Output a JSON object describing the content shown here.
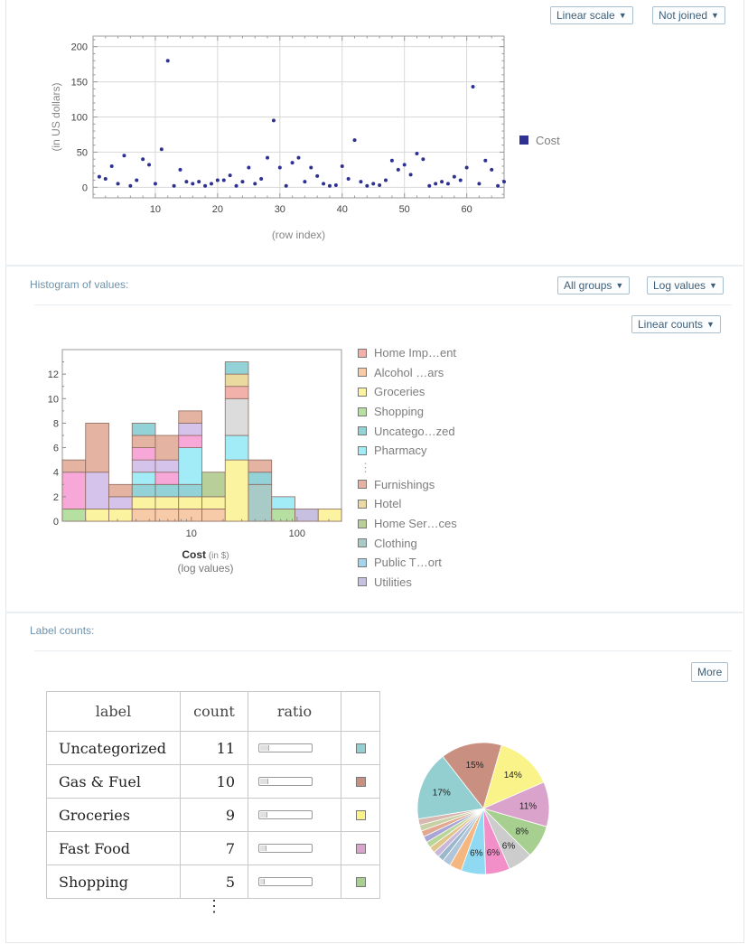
{
  "scatter": {
    "controls": {
      "scale": "Linear scale",
      "join": "Not joined"
    },
    "chart_data": {
      "type": "scatter",
      "title": "",
      "xlabel": "(row index)",
      "ylabel": "(in US dollars)",
      "xlim": [
        0,
        66
      ],
      "ylim": [
        -15,
        215
      ],
      "xticks": [
        10,
        20,
        30,
        40,
        50,
        60
      ],
      "yticks": [
        0,
        50,
        100,
        150,
        200
      ],
      "series": [
        {
          "name": "Cost",
          "color": "#2e3192",
          "x": [
            1,
            2,
            3,
            4,
            5,
            6,
            7,
            8,
            9,
            10,
            11,
            12,
            13,
            14,
            15,
            16,
            17,
            18,
            19,
            20,
            21,
            22,
            23,
            24,
            25,
            26,
            27,
            28,
            29,
            30,
            31,
            32,
            33,
            34,
            35,
            36,
            37,
            38,
            39,
            40,
            41,
            42,
            43,
            44,
            45,
            46,
            47,
            48,
            49,
            50,
            51,
            52,
            53,
            54,
            55,
            56,
            57,
            58,
            59,
            60,
            61,
            62,
            63,
            64,
            65,
            66
          ],
          "y": [
            15,
            12,
            30,
            5,
            45,
            2,
            10,
            40,
            32,
            5,
            54,
            180,
            2,
            25,
            8,
            5,
            8,
            2,
            5,
            10,
            10,
            17,
            2,
            8,
            28,
            5,
            12,
            42,
            95,
            28,
            2,
            35,
            42,
            8,
            28,
            16,
            5,
            2,
            3,
            30,
            12,
            67,
            8,
            2,
            5,
            3,
            10,
            38,
            25,
            32,
            18,
            48,
            40,
            2,
            5,
            8,
            5,
            15,
            10,
            28,
            143,
            5,
            38,
            25,
            2,
            8
          ]
        }
      ],
      "legend": "right"
    }
  },
  "histogram": {
    "title": "Histogram of values:",
    "controls": {
      "groups": "All groups",
      "values": "Log values",
      "counts": "Linear counts"
    },
    "chart_data": {
      "type": "bar",
      "stacked": true,
      "title": "",
      "xlabel": "Cost",
      "xlabel_unit": "(in $)",
      "xlabel_note": "(log values)",
      "log_x": true,
      "xticks": [
        10,
        100
      ],
      "yticks": [
        0,
        2,
        4,
        6,
        8,
        10,
        12
      ],
      "ylim": [
        0,
        14
      ],
      "bin_edges_log10": [
        -0.22,
        0.0,
        0.22,
        0.44,
        0.66,
        0.88,
        1.1,
        1.32,
        1.54,
        1.76,
        1.98,
        2.2,
        2.42
      ],
      "colors": {
        "Home Imp…ent": "#f2b2ab",
        "Alcohol …ars": "#f8cba8",
        "Groceries": "#fcf3a0",
        "Shopping": "#b6dfa2",
        "Uncatego…zed": "#93d2d6",
        "Pharmacy": "#a2ecf7",
        "Pink": "#f7a8d9",
        "Lavender": "#d5c3ec",
        "Furnishings": "#e5b3a1",
        "Hotel": "#eadaa0",
        "Home Ser…ces": "#b9cf9a",
        "Clothing": "#a9cbc8",
        "Public T…ort": "#a4d4ec",
        "Utilities": "#c7c0e0",
        "Gray": "#dcdcdc"
      },
      "bins": [
        [
          {
            "g": "Shopping",
            "v": 1
          },
          {
            "g": "Pink",
            "v": 3
          },
          {
            "g": "Furnishings",
            "v": 1
          }
        ],
        [
          {
            "g": "Groceries",
            "v": 1
          },
          {
            "g": "Lavender",
            "v": 3
          },
          {
            "g": "Furnishings",
            "v": 4
          }
        ],
        [
          {
            "g": "Groceries",
            "v": 1
          },
          {
            "g": "Lavender",
            "v": 1
          },
          {
            "g": "Furnishings",
            "v": 1
          }
        ],
        [
          {
            "g": "Alcohol …ars",
            "v": 1
          },
          {
            "g": "Groceries",
            "v": 1
          },
          {
            "g": "Uncatego…zed",
            "v": 1
          },
          {
            "g": "Pharmacy",
            "v": 1
          },
          {
            "g": "Lavender",
            "v": 1
          },
          {
            "g": "Pink",
            "v": 1
          },
          {
            "g": "Furnishings",
            "v": 1
          },
          {
            "g": "Uncatego…zed",
            "v": 1
          }
        ],
        [
          {
            "g": "Alcohol …ars",
            "v": 1
          },
          {
            "g": "Groceries",
            "v": 1
          },
          {
            "g": "Uncatego…zed",
            "v": 1
          },
          {
            "g": "Pink",
            "v": 1
          },
          {
            "g": "Lavender",
            "v": 1
          },
          {
            "g": "Furnishings",
            "v": 2
          }
        ],
        [
          {
            "g": "Alcohol …ars",
            "v": 1
          },
          {
            "g": "Groceries",
            "v": 1
          },
          {
            "g": "Uncatego…zed",
            "v": 1
          },
          {
            "g": "Pharmacy",
            "v": 3
          },
          {
            "g": "Pink",
            "v": 1
          },
          {
            "g": "Lavender",
            "v": 1
          },
          {
            "g": "Furnishings",
            "v": 1
          }
        ],
        [
          {
            "g": "Alcohol …ars",
            "v": 1
          },
          {
            "g": "Groceries",
            "v": 1
          },
          {
            "g": "Home Ser…ces",
            "v": 2
          }
        ],
        [
          {
            "g": "Groceries",
            "v": 5
          },
          {
            "g": "Pharmacy",
            "v": 2
          },
          {
            "g": "Gray",
            "v": 3
          },
          {
            "g": "Home Imp…ent",
            "v": 1
          },
          {
            "g": "Hotel",
            "v": 1
          },
          {
            "g": "Uncatego…zed",
            "v": 1
          }
        ],
        [
          {
            "g": "Clothing",
            "v": 3
          },
          {
            "g": "Uncatego…zed",
            "v": 1
          },
          {
            "g": "Furnishings",
            "v": 1
          }
        ],
        [
          {
            "g": "Shopping",
            "v": 1
          },
          {
            "g": "Pharmacy",
            "v": 1
          }
        ],
        [
          {
            "g": "Utilities",
            "v": 1
          }
        ],
        [
          {
            "g": "Groceries",
            "v": 1
          }
        ]
      ],
      "legend": "right"
    },
    "legend_items": [
      {
        "label": "Home Imp…ent",
        "color": "#f2b2ab"
      },
      {
        "label": "Alcohol …ars",
        "color": "#f8cba8"
      },
      {
        "label": "Groceries",
        "color": "#fcf3a0"
      },
      {
        "label": "Shopping",
        "color": "#b6dfa2"
      },
      {
        "label": "Uncatego…zed",
        "color": "#93d2d6"
      },
      {
        "label": "Pharmacy",
        "color": "#a2ecf7"
      }
    ],
    "legend_ellipsis": "⋮",
    "legend_items_2": [
      {
        "label": "Furnishings",
        "color": "#e5b3a1"
      },
      {
        "label": "Hotel",
        "color": "#eadaa0"
      },
      {
        "label": "Home Ser…ces",
        "color": "#b9cf9a"
      },
      {
        "label": "Clothing",
        "color": "#a9cbc8"
      },
      {
        "label": "Public T…ort",
        "color": "#a4d4ec"
      },
      {
        "label": "Utilities",
        "color": "#c7c0e0"
      }
    ]
  },
  "label_counts": {
    "title": "Label counts:",
    "more_button": "More",
    "headers": [
      "label",
      "count",
      "ratio",
      ""
    ],
    "rows": [
      {
        "label": "Uncategorized",
        "count": "11",
        "ratio": 0.15,
        "color": "#93cfd1"
      },
      {
        "label": "Gas & Fuel",
        "count": "10",
        "ratio": 0.14,
        "color": "#c99082"
      },
      {
        "label": "Groceries",
        "count": "9",
        "ratio": 0.12,
        "color": "#f9f38a"
      },
      {
        "label": "Fast Food",
        "count": "7",
        "ratio": 0.1,
        "color": "#d9a3cb"
      },
      {
        "label": "Shopping",
        "count": "5",
        "ratio": 0.07,
        "color": "#a6cf90"
      }
    ],
    "ellipsis": "⋮",
    "pie": {
      "type": "pie",
      "slices": [
        {
          "value": 15,
          "label": "15%",
          "color": "#c99082"
        },
        {
          "value": 14,
          "label": "14%",
          "color": "#f9f38a"
        },
        {
          "value": 11,
          "label": "11%",
          "color": "#d9a3cb"
        },
        {
          "value": 8,
          "label": "8%",
          "color": "#a6cf90"
        },
        {
          "value": 6,
          "label": "6%",
          "color": "#cccccc"
        },
        {
          "value": 6,
          "label": "6%",
          "color": "#f28fc8"
        },
        {
          "value": 6,
          "label": "6%",
          "color": "#8fd9f2"
        },
        {
          "value": 3,
          "label": "",
          "color": "#f5b77f"
        },
        {
          "value": 2,
          "label": "",
          "color": "#b0c6d8"
        },
        {
          "value": 1.5,
          "label": "",
          "color": "#9bb7cc"
        },
        {
          "value": 1.5,
          "label": "",
          "color": "#c9b7d9"
        },
        {
          "value": 1.5,
          "label": "",
          "color": "#e0c48a"
        },
        {
          "value": 1.5,
          "label": "",
          "color": "#b8d69a"
        },
        {
          "value": 1.5,
          "label": "",
          "color": "#a8a6d6"
        },
        {
          "value": 1.5,
          "label": "",
          "color": "#e2a890"
        },
        {
          "value": 1.5,
          "label": "",
          "color": "#c7d1a5"
        },
        {
          "value": 1.5,
          "label": "",
          "color": "#d7b8b0"
        },
        {
          "value": 17,
          "label": "17%",
          "color": "#93cfd1"
        }
      ]
    }
  }
}
